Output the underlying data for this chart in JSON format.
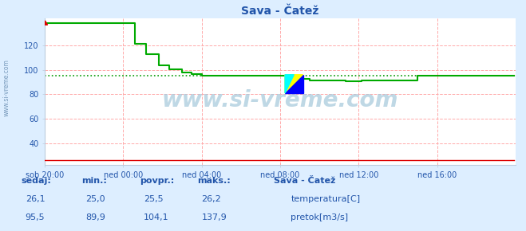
{
  "title": "Sava - Čatež",
  "bg_color": "#ddeeff",
  "plot_bg_color": "#ffffff",
  "grid_color": "#ffaaaa",
  "xlim": [
    0,
    288
  ],
  "ylim": [
    22,
    142
  ],
  "yticks": [
    40,
    60,
    80,
    100,
    120
  ],
  "xtick_labels": [
    "sob 20:00",
    "ned 00:00",
    "ned 04:00",
    "ned 08:00",
    "ned 12:00",
    "ned 16:00"
  ],
  "xtick_positions": [
    0,
    48,
    96,
    144,
    192,
    240
  ],
  "watermark": "www.si-vreme.com",
  "temp_color": "#dd0000",
  "flow_color": "#00aa00",
  "flow_avg_color": "#009900",
  "legend_title": "Sava - Čatež",
  "label_color": "#2255aa",
  "header_color": "#2255aa",
  "sidebar_color": "#7799bb",
  "sidebar_text": "www.si-vreme.com",
  "temp_sedaj": "26,1",
  "temp_min": "25,0",
  "temp_avg": "25,5",
  "temp_max": "26,2",
  "flow_sedaj": "95,5",
  "flow_min": "89,9",
  "flow_avg": "104,1",
  "flow_max": "137,9",
  "flow_avg_val": 95.5,
  "temp_line_val": 26.1
}
